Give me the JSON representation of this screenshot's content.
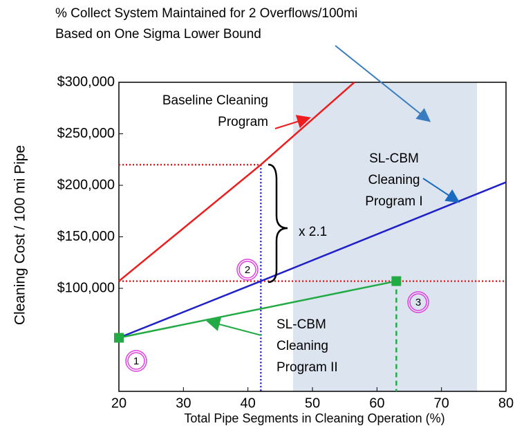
{
  "chart_data": {
    "type": "line",
    "title": [
      "% Collect System Maintained for  2 Overflows/100mi",
      "Based on One Sigma Lower Bound"
    ],
    "x_label": "Total Pipe Segments in Cleaning Operation (%)",
    "y_label": "Cleaning  Cost / 100 mi Pipe",
    "xlim": [
      20,
      80
    ],
    "xticks": [
      20,
      30,
      40,
      50,
      60,
      70,
      80
    ],
    "ylim": [
      0,
      300000
    ],
    "yticks": [
      {
        "value": 100000,
        "label": "$100,000"
      },
      {
        "value": 150000,
        "label": "$150,000"
      },
      {
        "value": 200000,
        "label": "$200,000"
      },
      {
        "value": 250000,
        "label": "$250,000"
      },
      {
        "value": 300000,
        "label": "$300,000"
      }
    ],
    "shaded_region": {
      "xlim": [
        47,
        75.5
      ],
      "color": "#dce4ef"
    },
    "series": [
      {
        "label": [
          "Baseline Cleaning",
          "Program"
        ],
        "color": "#ee1c1c",
        "x": [
          20,
          42,
          56.5
        ],
        "values": [
          107000,
          220000,
          300000
        ]
      },
      {
        "label": [
          "SL-CBM",
          "Cleaning",
          "Program I"
        ],
        "color": "#2020c8",
        "x": [
          20,
          42,
          80
        ],
        "values": [
          52000,
          107000,
          203000
        ]
      },
      {
        "label": [
          "SL-CBM",
          "Cleaning",
          "Program II"
        ],
        "color": "#22aa44",
        "x": [
          20,
          63
        ],
        "values": [
          52000,
          107000
        ],
        "markers": "square"
      }
    ],
    "hlines": [
      {
        "y": 220000,
        "xlim": [
          20,
          42
        ],
        "color": "#ee1c1c"
      },
      {
        "y": 107000,
        "xlim": [
          20,
          80
        ],
        "color": "#ee1c1c"
      }
    ],
    "vlines": [
      {
        "x": 42,
        "ylim": [
          0,
          220000
        ],
        "color": "#2020c8",
        "dash": "dotted"
      },
      {
        "x": 63,
        "ylim": [
          0,
          107000
        ],
        "color": "#22aa44",
        "dash": "dashed"
      }
    ],
    "ratio_label": "x 2.1",
    "circled": [
      "1",
      "2",
      "3"
    ]
  }
}
